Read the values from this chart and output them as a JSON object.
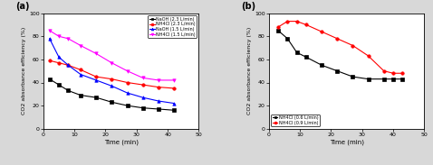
{
  "panel_a": {
    "series": [
      {
        "label": "NaOH (2.3 L/min)",
        "color": "black",
        "marker": "s",
        "linestyle": "-",
        "x": [
          2,
          5,
          8,
          12,
          17,
          22,
          27,
          32,
          37,
          42
        ],
        "y": [
          43,
          38,
          33,
          29,
          27,
          23,
          20,
          18,
          17,
          16
        ]
      },
      {
        "label": "NH4Cl (2.3 L/min)",
        "color": "red",
        "marker": "o",
        "linestyle": "-",
        "x": [
          2,
          5,
          8,
          12,
          17,
          22,
          27,
          32,
          37,
          42
        ],
        "y": [
          59,
          57,
          55,
          51,
          45,
          43,
          40,
          38,
          36,
          35
        ]
      },
      {
        "label": "NaOH (1.5 L/min)",
        "color": "blue",
        "marker": "^",
        "linestyle": "-",
        "x": [
          2,
          5,
          8,
          12,
          17,
          22,
          27,
          32,
          37,
          42
        ],
        "y": [
          78,
          62,
          55,
          47,
          42,
          37,
          31,
          27,
          24,
          22
        ]
      },
      {
        "label": "NH4Cl (1.5 L/min)",
        "color": "magenta",
        "marker": "v",
        "linestyle": "-",
        "x": [
          2,
          5,
          8,
          12,
          17,
          22,
          27,
          32,
          37,
          42
        ],
        "y": [
          85,
          80,
          78,
          72,
          65,
          57,
          50,
          44,
          42,
          42
        ]
      }
    ],
    "xlabel": "Time (min)",
    "ylabel": "CO2 absorbance efficiency (%)",
    "xlim": [
      0,
      50
    ],
    "ylim": [
      0,
      100
    ],
    "xticks": [
      0,
      10,
      20,
      30,
      40,
      50
    ],
    "yticks": [
      0,
      20,
      40,
      60,
      80,
      100
    ],
    "label": "(a)"
  },
  "panel_b": {
    "series": [
      {
        "label": "NH4Cl (0.6 L/min)",
        "color": "black",
        "marker": "s",
        "linestyle": "-",
        "x": [
          3,
          6,
          9,
          12,
          17,
          22,
          27,
          32,
          37,
          40,
          43
        ],
        "y": [
          85,
          78,
          66,
          62,
          55,
          50,
          45,
          43,
          43,
          43,
          43
        ]
      },
      {
        "label": "NH4Cl (0.9 L/min)",
        "color": "red",
        "marker": "o",
        "linestyle": "-",
        "x": [
          3,
          6,
          9,
          12,
          17,
          22,
          27,
          32,
          37,
          40,
          43
        ],
        "y": [
          88,
          93,
          93,
          90,
          84,
          78,
          72,
          63,
          50,
          48,
          48
        ]
      }
    ],
    "xlabel": "Time (min)",
    "ylabel": "CO2 absorbance efficiency (%)",
    "xlim": [
      0,
      50
    ],
    "ylim": [
      0,
      100
    ],
    "xticks": [
      0,
      10,
      20,
      30,
      40,
      50
    ],
    "yticks": [
      0,
      20,
      40,
      60,
      80,
      100
    ],
    "label": "(b)"
  },
  "figure_facecolor": "#d8d8d8",
  "axes_facecolor": "#ffffff",
  "font_family": "Times New Roman"
}
